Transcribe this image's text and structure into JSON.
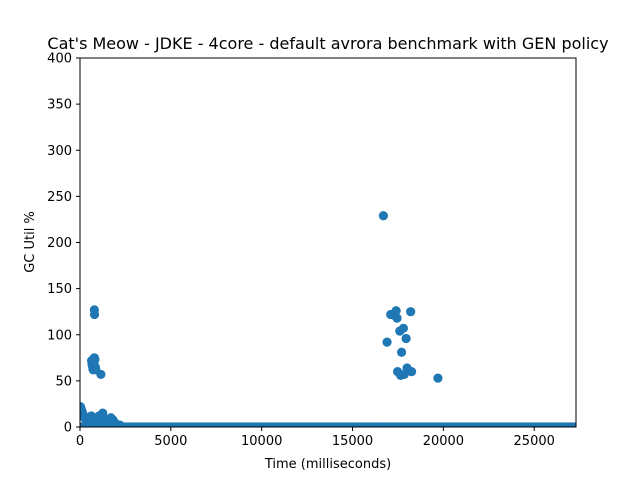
{
  "chart_data": {
    "type": "scatter",
    "title": "Cat's Meow - JDKE - 4core -  default avrora benchmark with GEN policy",
    "xlabel": "Time (milliseconds)",
    "ylabel": "GC Util %",
    "xlim": [
      0,
      27300
    ],
    "ylim": [
      0,
      400
    ],
    "xticks": [
      0,
      5000,
      10000,
      15000,
      20000,
      25000
    ],
    "yticks": [
      0,
      50,
      100,
      150,
      200,
      250,
      300,
      350,
      400
    ],
    "grid": false,
    "color": "#1f77b4",
    "baseline": {
      "x_start": 0,
      "x_end": 27300,
      "step": 100,
      "y": 0
    },
    "points": [
      {
        "x": 30,
        "y": 22
      },
      {
        "x": 80,
        "y": 19
      },
      {
        "x": 130,
        "y": 16
      },
      {
        "x": 180,
        "y": 13
      },
      {
        "x": 250,
        "y": 10
      },
      {
        "x": 320,
        "y": 8
      },
      {
        "x": 420,
        "y": 6
      },
      {
        "x": 520,
        "y": 4
      },
      {
        "x": 620,
        "y": 12
      },
      {
        "x": 680,
        "y": 3
      },
      {
        "x": 720,
        "y": 6
      },
      {
        "x": 640,
        "y": 72
      },
      {
        "x": 660,
        "y": 68
      },
      {
        "x": 690,
        "y": 66
      },
      {
        "x": 710,
        "y": 63
      },
      {
        "x": 730,
        "y": 62
      },
      {
        "x": 760,
        "y": 70
      },
      {
        "x": 790,
        "y": 75
      },
      {
        "x": 820,
        "y": 73
      },
      {
        "x": 850,
        "y": 65
      },
      {
        "x": 870,
        "y": 62
      },
      {
        "x": 790,
        "y": 127
      },
      {
        "x": 800,
        "y": 122
      },
      {
        "x": 1000,
        "y": 10
      },
      {
        "x": 1050,
        "y": 12
      },
      {
        "x": 1100,
        "y": 8
      },
      {
        "x": 1150,
        "y": 57
      },
      {
        "x": 1200,
        "y": 13
      },
      {
        "x": 1250,
        "y": 15
      },
      {
        "x": 1300,
        "y": 10
      },
      {
        "x": 1350,
        "y": 6
      },
      {
        "x": 1450,
        "y": 5
      },
      {
        "x": 1550,
        "y": 4
      },
      {
        "x": 1650,
        "y": 9
      },
      {
        "x": 1700,
        "y": 10
      },
      {
        "x": 1750,
        "y": 7
      },
      {
        "x": 1800,
        "y": 8
      },
      {
        "x": 1900,
        "y": 5
      },
      {
        "x": 2000,
        "y": 3
      },
      {
        "x": 2200,
        "y": 2
      },
      {
        "x": 16700,
        "y": 229
      },
      {
        "x": 16900,
        "y": 92
      },
      {
        "x": 17100,
        "y": 122
      },
      {
        "x": 17300,
        "y": 121
      },
      {
        "x": 17400,
        "y": 126
      },
      {
        "x": 17450,
        "y": 118
      },
      {
        "x": 17480,
        "y": 60
      },
      {
        "x": 17600,
        "y": 104
      },
      {
        "x": 17650,
        "y": 56
      },
      {
        "x": 17700,
        "y": 81
      },
      {
        "x": 17800,
        "y": 107
      },
      {
        "x": 17850,
        "y": 57
      },
      {
        "x": 17950,
        "y": 96
      },
      {
        "x": 18000,
        "y": 64
      },
      {
        "x": 18200,
        "y": 125
      },
      {
        "x": 18250,
        "y": 60
      },
      {
        "x": 19700,
        "y": 53
      }
    ]
  }
}
